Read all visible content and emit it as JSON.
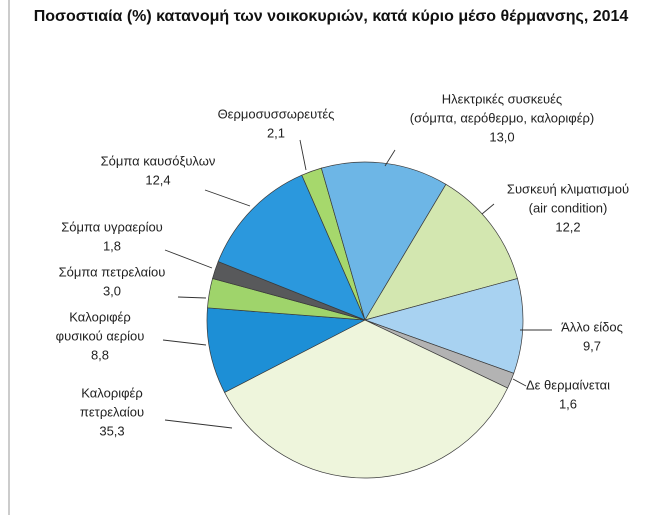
{
  "chart_data": {
    "type": "pie",
    "title": "Ποσοστιαία (%) κατανομή των νοικοκυριών, κατά κύριο μέσο θέρμανσης, 2014",
    "categories": [
      [
        "Θερμοσυσσωρευτές"
      ],
      [
        "Ηλεκτρικές συσκευές",
        "(σόμπα, αερόθερμο, καλοριφέρ)"
      ],
      [
        "Συσκευή κλιματισμού",
        "(air condition)"
      ],
      [
        "Άλλο είδος"
      ],
      [
        "Δε θερμαίνεται"
      ],
      [
        "Καλοριφέρ",
        "πετρελαίου"
      ],
      [
        "Καλοριφέρ",
        "φυσικού αερίου"
      ],
      [
        "Σόμπα πετρελαίου"
      ],
      [
        "Σόμπα υγραερίου"
      ],
      [
        "Σόμπα καυσόξυλων"
      ]
    ],
    "values": [
      2.1,
      13.0,
      12.2,
      9.7,
      1.6,
      35.3,
      8.8,
      3.0,
      1.8,
      12.4
    ],
    "value_labels": [
      "2,1",
      "13,0",
      "12,2",
      "9,7",
      "1,6",
      "35,3",
      "8,8",
      "3,0",
      "1,8",
      "12,4"
    ],
    "colors": [
      "#a6d86c",
      "#6db6e6",
      "#d3e7b0",
      "#a8d2f1",
      "#b3b3b3",
      "#eef5dc",
      "#1d8fd6",
      "#9fd46b",
      "#58595b",
      "#2b98dd"
    ]
  }
}
